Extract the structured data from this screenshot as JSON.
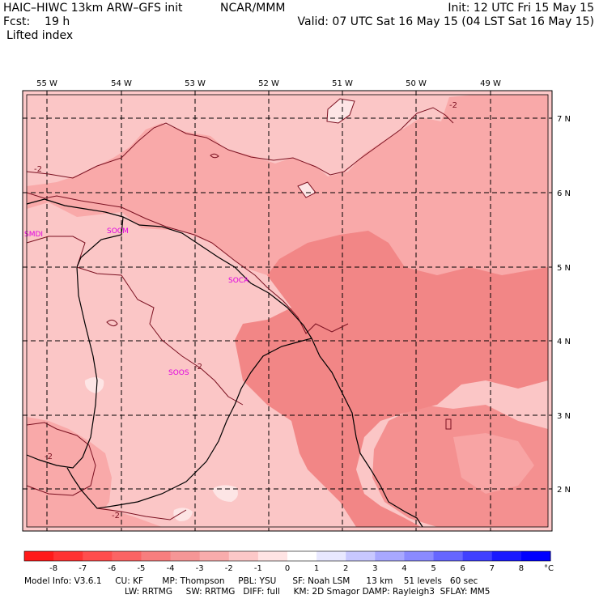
{
  "header": {
    "model": "HAIC–HIWC 13km ARW–GFS init",
    "org": "NCAR/MMM",
    "init": "Init: 12 UTC Fri 15 May 15",
    "fcst": "Fcst:    19 h",
    "valid": "Valid: 07 UTC Sat 16 May 15 (04 LST Sat 16 May 15)",
    "field": "Lifted index"
  },
  "map": {
    "lon_labels": [
      "55 W",
      "54 W",
      "53 W",
      "52 W",
      "51 W",
      "50 W",
      "49 W"
    ],
    "lat_labels": [
      "7 N",
      "6 N",
      "5 N",
      "4 N",
      "3 N",
      "2 N"
    ],
    "stations": [
      "SOCA",
      "SOCM",
      "SOOS",
      "SMDI"
    ],
    "contour_label": "-2",
    "colors": {
      "lightest": "#fddcdc",
      "light": "#fcc9c9",
      "mid": "#f9a9a9",
      "dark": "#f28686",
      "contour": "#7a1020"
    }
  },
  "colorbar": {
    "ticks": [
      "-8",
      "-7",
      "-6",
      "-5",
      "-4",
      "-3",
      "-2",
      "-1",
      "0",
      "1",
      "2",
      "3",
      "4",
      "5",
      "6",
      "7",
      "8"
    ],
    "unit": "°C",
    "colors": [
      "#ff1a1a",
      "#ff3333",
      "#ff4d4d",
      "#fb6464",
      "#f77e7e",
      "#f59696",
      "#f8acac",
      "#fcc8c8",
      "#ffe4e4",
      "#ffffff",
      "#e8e8ff",
      "#c8c8ff",
      "#a8a8ff",
      "#8a8aff",
      "#6666ff",
      "#4040ff",
      "#1a1aff",
      "#0000ff"
    ]
  },
  "footer": {
    "line1": "Model Info: V3.6.1     CU: KF       MP: Thompson     PBL: YSU      SF: Noah LSM      13 km    51 levels   60 sec",
    "line2": "LW: RRTMG     SW: RRTMG   DIFF: full     KM: 2D Smagor DAMP: Rayleigh3  SFLAY: MM5"
  }
}
